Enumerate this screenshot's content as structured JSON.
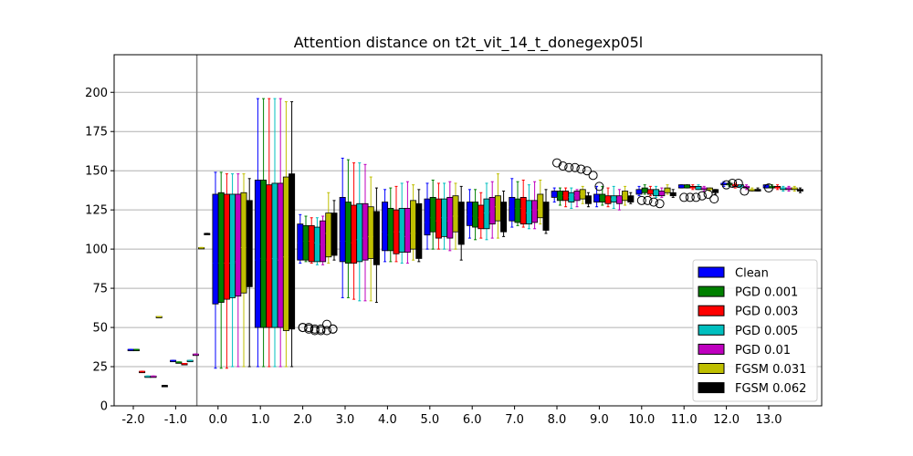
{
  "chart_data": {
    "type": "box",
    "title": "Attention distance on t2t_vit_14_t_donegexp05l",
    "xlabel": "",
    "ylabel": "",
    "categories": [
      "-2.0",
      "-1.0",
      "0.0",
      "1.0",
      "2.0",
      "3.0",
      "4.0",
      "5.0",
      "6.0",
      "7.0",
      "8.0",
      "9.0",
      "10.0",
      "11.0",
      "12.0",
      "13.0"
    ],
    "y_ticks": [
      "0",
      "25",
      "50",
      "75",
      "100",
      "125",
      "150",
      "175",
      "200"
    ],
    "ylim": [
      0,
      224
    ],
    "grid": "horizontal",
    "divider_at_category": 0,
    "legend_position": "lower-right",
    "series": [
      {
        "name": "Clean",
        "color": "#0000ff"
      },
      {
        "name": "PGD 0.001",
        "color": "#008000"
      },
      {
        "name": "PGD 0.003",
        "color": "#ff0000"
      },
      {
        "name": "PGD 0.005",
        "color": "#00bfbf"
      },
      {
        "name": "PGD 0.01",
        "color": "#bf00bf"
      },
      {
        "name": "FGSM 0.031",
        "color": "#bfbf00"
      },
      {
        "name": "FGSM 0.062",
        "color": "#000000"
      }
    ],
    "boxes": [
      [
        [
          36,
          36,
          36,
          36,
          36
        ],
        [
          36,
          36,
          36,
          36,
          36
        ],
        [
          22,
          22,
          22,
          22,
          22
        ],
        [
          19,
          19,
          19,
          19,
          19
        ],
        [
          19,
          19,
          19,
          19,
          19
        ],
        [
          57,
          57,
          57,
          57,
          57
        ],
        [
          13,
          13,
          13,
          13,
          13
        ]
      ],
      [
        [
          29,
          29,
          29,
          29,
          29
        ],
        [
          28,
          28,
          28,
          28,
          28
        ],
        [
          27,
          27,
          27,
          27,
          27
        ],
        [
          29,
          29,
          29,
          29,
          29
        ],
        [
          33,
          33,
          33,
          33,
          33
        ],
        [
          101,
          101,
          101,
          101,
          101
        ],
        [
          110,
          110,
          110,
          110,
          110
        ]
      ],
      [
        [
          24,
          65,
          91,
          135,
          149
        ],
        [
          24,
          66,
          91,
          136,
          149
        ],
        [
          24,
          68,
          91,
          135,
          148
        ],
        [
          25,
          69,
          91,
          135,
          148
        ],
        [
          25,
          70,
          92,
          135,
          148
        ],
        [
          25,
          72,
          101,
          136,
          148
        ],
        [
          25,
          76,
          95,
          131,
          145
        ]
      ],
      [
        [
          25,
          50,
          93,
          144,
          196
        ],
        [
          25,
          50,
          94,
          144,
          196
        ],
        [
          25,
          50,
          93,
          141,
          196
        ],
        [
          25,
          50,
          94,
          142,
          196
        ],
        [
          25,
          50,
          93,
          142,
          196
        ],
        [
          25,
          48,
          95,
          146,
          194
        ],
        [
          25,
          49,
          95,
          148,
          194
        ]
      ],
      [
        [
          91,
          93,
          104,
          116,
          122
        ],
        [
          92,
          93,
          105,
          115,
          121
        ],
        [
          91,
          92,
          105,
          115,
          120
        ],
        [
          90,
          92,
          104,
          114,
          120
        ],
        [
          90,
          92,
          103,
          118,
          121
        ],
        [
          91,
          95,
          110,
          123,
          136
        ],
        [
          93,
          96,
          108,
          123,
          131
        ]
      ],
      [
        [
          69,
          92,
          105,
          133,
          158
        ],
        [
          69,
          91,
          105,
          130,
          157
        ],
        [
          68,
          91,
          104,
          128,
          155
        ],
        [
          67,
          92,
          106,
          129,
          155
        ],
        [
          67,
          93,
          107,
          129,
          154
        ],
        [
          67,
          94,
          108,
          127,
          146
        ],
        [
          66,
          90,
          105,
          124,
          139
        ]
      ],
      [
        [
          92,
          99,
          111,
          130,
          138
        ],
        [
          92,
          99,
          109,
          126,
          139
        ],
        [
          92,
          97,
          111,
          125,
          140
        ],
        [
          91,
          98,
          111,
          126,
          142
        ],
        [
          91,
          98,
          108,
          126,
          143
        ],
        [
          93,
          100,
          110,
          131,
          141
        ],
        [
          92,
          94,
          108,
          129,
          138
        ]
      ],
      [
        [
          100,
          109,
          117,
          132,
          142
        ],
        [
          100,
          111,
          120,
          133,
          144
        ],
        [
          100,
          107,
          118,
          132,
          142
        ],
        [
          100,
          108,
          120,
          132,
          142
        ],
        [
          99,
          107,
          118,
          133,
          143
        ],
        [
          100,
          111,
          121,
          134,
          142
        ],
        [
          93,
          103,
          115,
          130,
          140
        ]
      ],
      [
        [
          107,
          115,
          122,
          130,
          138
        ],
        [
          106,
          114,
          121,
          130,
          138
        ],
        [
          107,
          113,
          120,
          128,
          136
        ],
        [
          106,
          113,
          123,
          132,
          142
        ],
        [
          107,
          116,
          124,
          133,
          143
        ],
        [
          107,
          118,
          127,
          134,
          148
        ],
        [
          108,
          111,
          120,
          130,
          137
        ]
      ],
      [
        [
          114,
          118,
          127,
          133,
          145
        ],
        [
          115,
          117,
          126,
          132,
          143
        ],
        [
          114,
          116,
          126,
          133,
          144
        ],
        [
          113,
          116,
          123,
          131,
          141
        ],
        [
          113,
          117,
          125,
          131,
          143
        ],
        [
          116,
          120,
          125,
          135,
          144
        ],
        [
          110,
          112,
          118,
          130,
          138
        ]
      ],
      [
        [
          130,
          133,
          135,
          137,
          139
        ],
        [
          128,
          131,
          133,
          137,
          139
        ],
        [
          127,
          131,
          134,
          137,
          139
        ],
        [
          126,
          130,
          133,
          136,
          139
        ],
        [
          127,
          131,
          134,
          137,
          138
        ],
        [
          129,
          132,
          135,
          138,
          140
        ],
        [
          127,
          129,
          130,
          134,
          136
        ]
      ],
      [
        [
          127,
          130,
          132,
          135,
          140
        ],
        [
          128,
          130,
          133,
          135,
          140
        ],
        [
          127,
          129,
          132,
          134,
          139
        ],
        [
          126,
          130,
          132,
          134,
          140
        ],
        [
          125,
          129,
          132,
          134,
          138
        ],
        [
          128,
          131,
          134,
          137,
          140
        ],
        [
          129,
          130,
          132,
          134,
          136
        ]
      ],
      [
        [
          134,
          135,
          137,
          138,
          140
        ],
        [
          135,
          136,
          137,
          139,
          141
        ],
        [
          134,
          135,
          136,
          138,
          140
        ],
        [
          133,
          134,
          136,
          138,
          140
        ],
        [
          133,
          134,
          136,
          137,
          139
        ],
        [
          135,
          136,
          137,
          139,
          141
        ],
        [
          133,
          134,
          135,
          136,
          138
        ]
      ],
      [
        [
          139,
          139,
          140,
          141,
          141
        ],
        [
          139,
          139,
          140,
          141,
          141
        ],
        [
          138,
          139,
          139,
          140,
          141
        ],
        [
          138,
          138,
          139,
          140,
          141
        ],
        [
          137,
          138,
          139,
          139,
          140
        ],
        [
          137,
          138,
          138,
          139,
          139
        ],
        [
          135,
          136,
          137,
          138,
          138
        ]
      ],
      [
        [
          140,
          141,
          142,
          142,
          143
        ],
        [
          140,
          141,
          141,
          142,
          143
        ],
        [
          139,
          140,
          141,
          141,
          142
        ],
        [
          139,
          140,
          140,
          141,
          141
        ],
        [
          138,
          139,
          140,
          140,
          141
        ],
        [
          137,
          138,
          138,
          138,
          139
        ],
        [
          137,
          137,
          138,
          138,
          139
        ]
      ],
      [
        [
          139,
          139,
          140,
          141,
          141
        ],
        [
          139,
          139,
          140,
          140,
          141
        ],
        [
          138,
          139,
          139,
          140,
          141
        ],
        [
          137,
          138,
          139,
          139,
          140
        ],
        [
          137,
          138,
          139,
          139,
          140
        ],
        [
          137,
          138,
          139,
          139,
          140
        ],
        [
          136,
          137,
          138,
          138,
          139
        ]
      ]
    ],
    "outliers": [
      {
        "category": "2.0",
        "values": [
          [
            50,
            49,
            48,
            48,
            52,
            49
          ],
          [
            50,
            50,
            49,
            49,
            48,
            49
          ]
        ]
      },
      {
        "category": "8.0",
        "values": [
          [
            155,
            153,
            152,
            152,
            151,
            150,
            147
          ]
        ]
      },
      {
        "category": "9.0",
        "values": [
          [
            140
          ]
        ]
      },
      {
        "category": "10.0",
        "values": [
          [
            131,
            131,
            130,
            129
          ]
        ]
      },
      {
        "category": "11.0",
        "values": [
          [
            133,
            133,
            133,
            134,
            135,
            132
          ]
        ]
      },
      {
        "category": "12.0",
        "values": [
          [
            141,
            142,
            142,
            137
          ]
        ]
      },
      {
        "category": "13.0",
        "values": [
          [
            139
          ]
        ]
      }
    ]
  }
}
